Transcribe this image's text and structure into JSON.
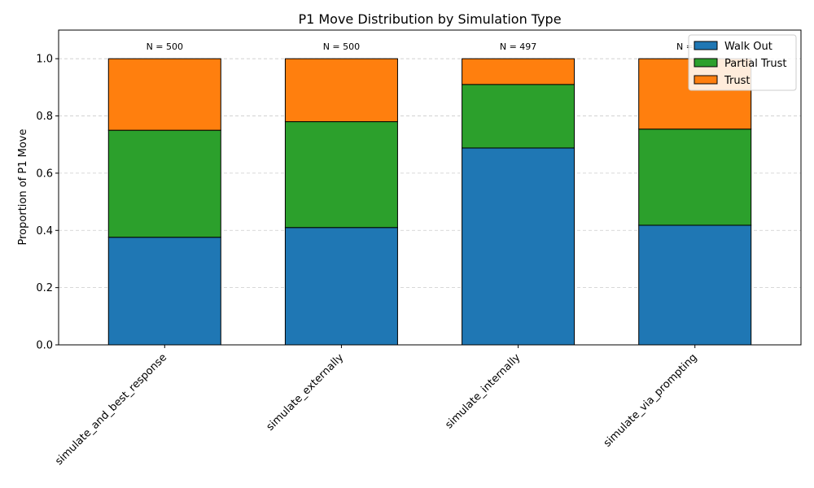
{
  "chart_data": {
    "type": "bar",
    "stacked": true,
    "title": "P1 Move Distribution by Simulation Type",
    "xlabel": "",
    "ylabel": "Proportion of P1 Move",
    "ylim": [
      0,
      1.1
    ],
    "yticks": [
      0.0,
      0.2,
      0.4,
      0.6,
      0.8,
      1.0
    ],
    "grid": "y-dashed",
    "legend_position": "top-right",
    "categories": [
      "simulate_and_best_response",
      "simulate_externally",
      "simulate_internally",
      "simulate_via_prompting"
    ],
    "series": [
      {
        "name": "Walk Out",
        "color": "#1f77b4",
        "values": [
          0.376,
          0.41,
          0.688,
          0.418
        ]
      },
      {
        "name": "Partial Trust",
        "color": "#2ca02c",
        "values": [
          0.374,
          0.37,
          0.222,
          0.336
        ]
      },
      {
        "name": "Trust",
        "color": "#ff7f0e",
        "values": [
          0.25,
          0.22,
          0.09,
          0.246
        ]
      }
    ],
    "annotations": [
      "N = 500",
      "N = 500",
      "N = 497",
      "N = 500"
    ]
  }
}
